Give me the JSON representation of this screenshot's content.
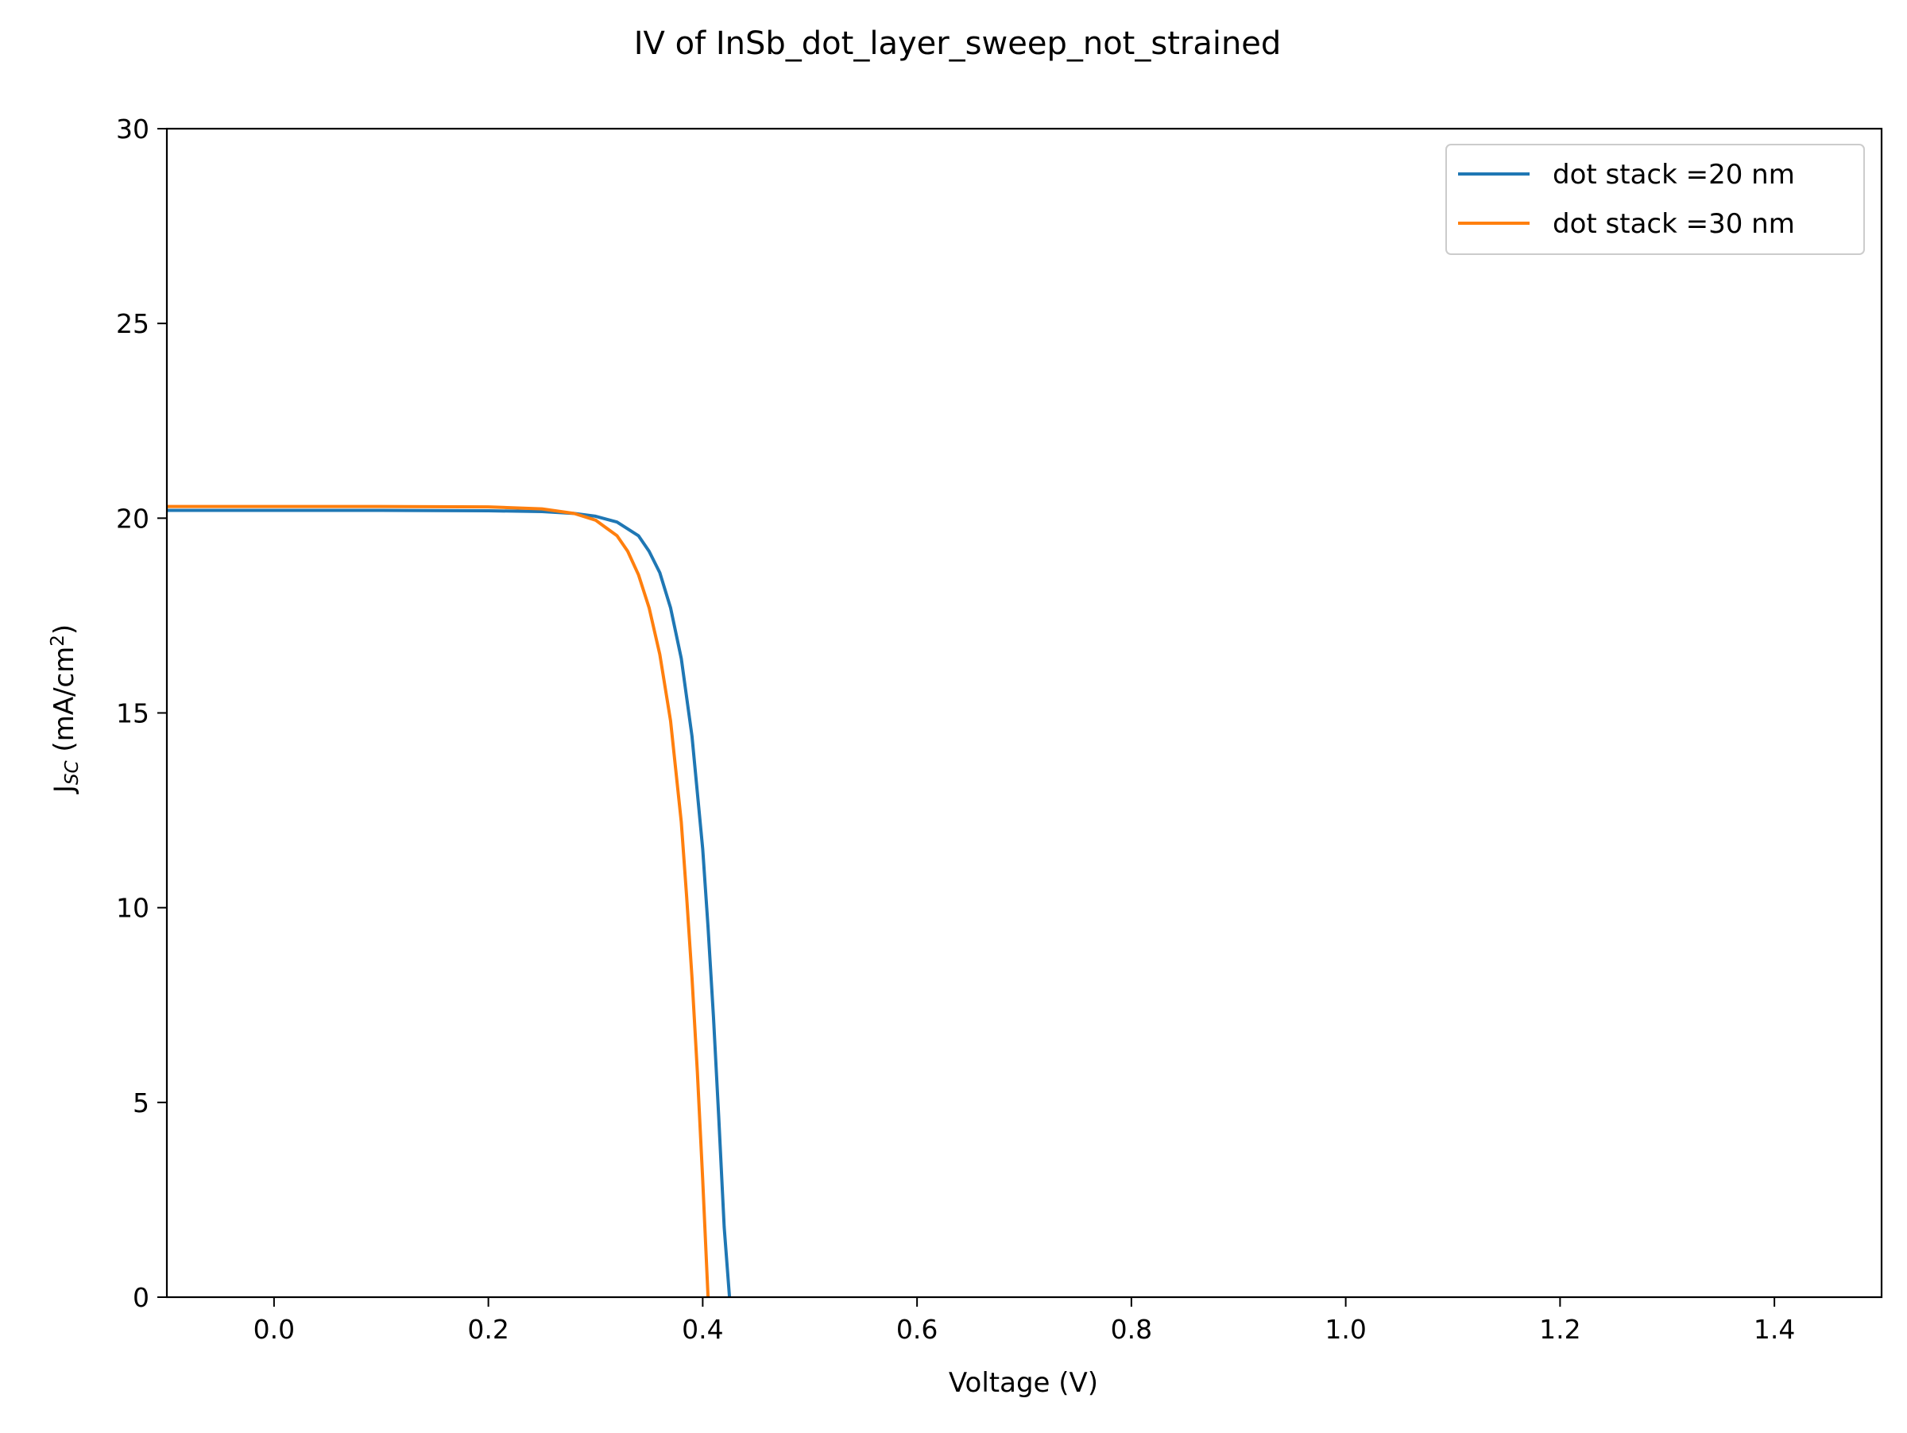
{
  "chart_data": {
    "type": "line",
    "title": "IV of InSb_dot_layer_sweep_not_strained",
    "xlabel": "Voltage (V)",
    "ylabel": {
      "main": "J",
      "subscript": "SC",
      "units_prefix": " (mA/cm",
      "units_sup": "2",
      "units_suffix": ")"
    },
    "xlim": [
      -0.1,
      1.5
    ],
    "ylim": [
      0,
      30
    ],
    "x_ticks": [
      0.0,
      0.2,
      0.4,
      0.6,
      0.8,
      1.0,
      1.2,
      1.4
    ],
    "x_tick_labels": [
      "0.0",
      "0.2",
      "0.4",
      "0.6",
      "0.8",
      "1.0",
      "1.2",
      "1.4"
    ],
    "y_ticks": [
      0,
      5,
      10,
      15,
      20,
      25,
      30
    ],
    "y_tick_labels": [
      "0",
      "5",
      "10",
      "15",
      "20",
      "25",
      "30"
    ],
    "grid": false,
    "legend_position": "top-right",
    "series": [
      {
        "name": "dot stack =20 nm",
        "color": "#1f77b4",
        "x": [
          -0.1,
          0.0,
          0.1,
          0.2,
          0.25,
          0.28,
          0.3,
          0.32,
          0.34,
          0.35,
          0.36,
          0.37,
          0.38,
          0.39,
          0.4,
          0.405,
          0.41,
          0.415,
          0.42,
          0.425
        ],
        "y": [
          20.2,
          20.2,
          20.2,
          20.19,
          20.17,
          20.12,
          20.05,
          19.9,
          19.55,
          19.15,
          18.6,
          17.7,
          16.4,
          14.4,
          11.5,
          9.5,
          7.2,
          4.6,
          1.8,
          0.0
        ]
      },
      {
        "name": "dot stack =30 nm",
        "color": "#ff7f0e",
        "x": [
          -0.1,
          0.0,
          0.1,
          0.2,
          0.25,
          0.28,
          0.3,
          0.32,
          0.33,
          0.34,
          0.35,
          0.36,
          0.37,
          0.38,
          0.385,
          0.39,
          0.395,
          0.4,
          0.405
        ],
        "y": [
          20.3,
          20.3,
          20.3,
          20.29,
          20.24,
          20.12,
          19.95,
          19.55,
          19.15,
          18.55,
          17.7,
          16.5,
          14.8,
          12.2,
          10.3,
          8.2,
          5.8,
          3.0,
          0.0
        ]
      }
    ]
  }
}
